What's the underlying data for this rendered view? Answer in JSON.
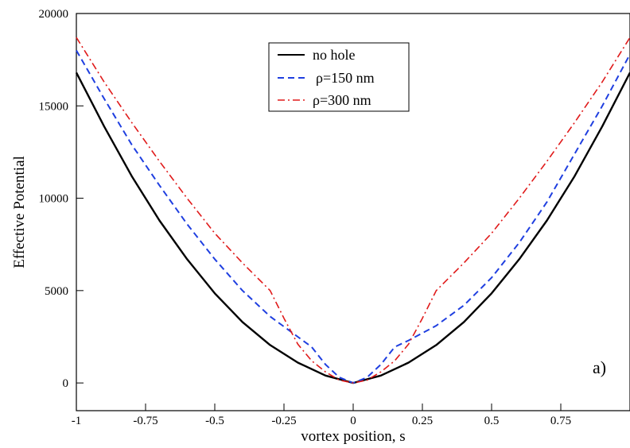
{
  "chart_data": {
    "type": "line",
    "xlabel": "vortex position, s",
    "ylabel": "Effective Potential",
    "xlim": [
      -1,
      1
    ],
    "ylim": [
      -1500,
      20000
    ],
    "xticks": [
      -1,
      -0.75,
      -0.5,
      -0.25,
      0,
      0.25,
      0.5,
      0.75
    ],
    "xtick_labels": [
      "-1",
      "-0.75",
      "-0.5",
      "-0.25",
      "0",
      "0.25",
      "0.5",
      "0.75"
    ],
    "yticks": [
      0,
      5000,
      10000,
      15000,
      20000
    ],
    "ytick_labels": [
      "0",
      "5000",
      "10000",
      "15000",
      "20000"
    ],
    "grid": false,
    "legend_position": "top-center",
    "annotation": "a)",
    "series": [
      {
        "name": "no hole",
        "color": "#000000",
        "dash": "solid",
        "x": [
          -1,
          -0.9,
          -0.8,
          -0.7,
          -0.6,
          -0.5,
          -0.4,
          -0.3,
          -0.2,
          -0.1,
          0,
          0.1,
          0.2,
          0.3,
          0.4,
          0.5,
          0.6,
          0.7,
          0.8,
          0.9,
          1
        ],
        "y": [
          16800,
          13900,
          11200,
          8800,
          6700,
          4850,
          3300,
          2050,
          1100,
          400,
          0,
          400,
          1100,
          2050,
          3300,
          4850,
          6700,
          8800,
          11200,
          13900,
          16800
        ]
      },
      {
        "name": "ρ=150  nm",
        "color": "#1f3fe0",
        "dash": "dashed",
        "x": [
          -1,
          -0.9,
          -0.8,
          -0.7,
          -0.6,
          -0.5,
          -0.4,
          -0.3,
          -0.2,
          -0.15,
          -0.1,
          -0.05,
          0,
          0.05,
          0.1,
          0.15,
          0.2,
          0.3,
          0.4,
          0.5,
          0.6,
          0.7,
          0.8,
          0.9,
          1
        ],
        "y": [
          18000,
          15400,
          12900,
          10700,
          8600,
          6700,
          5000,
          3600,
          2500,
          1950,
          1000,
          300,
          0,
          300,
          1000,
          1950,
          2300,
          3100,
          4200,
          5700,
          7600,
          9800,
          12400,
          15000,
          17800
        ]
      },
      {
        "name": "ρ=300 nm",
        "color": "#e01a1a",
        "dash": "dashdot",
        "x": [
          -1,
          -0.9,
          -0.8,
          -0.7,
          -0.6,
          -0.5,
          -0.4,
          -0.3,
          -0.25,
          -0.2,
          -0.15,
          -0.1,
          -0.05,
          0,
          0.05,
          0.1,
          0.15,
          0.2,
          0.25,
          0.3,
          0.4,
          0.5,
          0.6,
          0.7,
          0.8,
          0.9,
          1
        ],
        "y": [
          18700,
          16300,
          14100,
          12000,
          10000,
          8100,
          6500,
          5000,
          3500,
          2100,
          1200,
          600,
          150,
          0,
          150,
          600,
          1200,
          2100,
          3500,
          5000,
          6500,
          8100,
          10000,
          12000,
          14100,
          16300,
          18700
        ]
      }
    ]
  }
}
